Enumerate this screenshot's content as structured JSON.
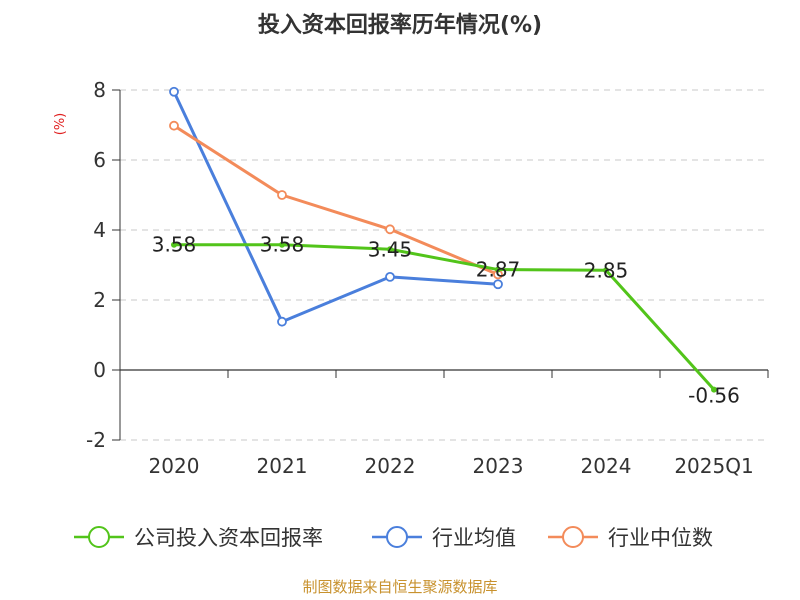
{
  "chart_data": {
    "type": "line",
    "title": "投入资本回报率历年情况(%)",
    "ylabel": "(%)",
    "xlabel": "",
    "categories": [
      "2020",
      "2021",
      "2022",
      "2023",
      "2024",
      "2025Q1"
    ],
    "ylim": [
      -2,
      8
    ],
    "yticks": [
      -2,
      0,
      2,
      4,
      6,
      8
    ],
    "grid": true,
    "legend_position": "bottom",
    "series": [
      {
        "name": "公司投入资本回报率",
        "color": "#52c41a",
        "values": [
          3.58,
          3.58,
          3.45,
          2.87,
          2.85,
          -0.56
        ],
        "data_labels": [
          "3.58",
          "3.58",
          "3.45",
          "2.87",
          "2.85",
          "-0.56"
        ]
      },
      {
        "name": "行业均值",
        "color": "#4a7fdc",
        "values": [
          7.95,
          1.38,
          2.66,
          2.45,
          null,
          null
        ],
        "data_labels": null
      },
      {
        "name": "行业中位数",
        "color": "#f38b5a",
        "values": [
          6.98,
          5.0,
          4.02,
          2.73,
          null,
          null
        ],
        "data_labels": null
      }
    ]
  },
  "footer": {
    "source": "制图数据来自恒生聚源数据库",
    "source_color": "#c8922e"
  }
}
